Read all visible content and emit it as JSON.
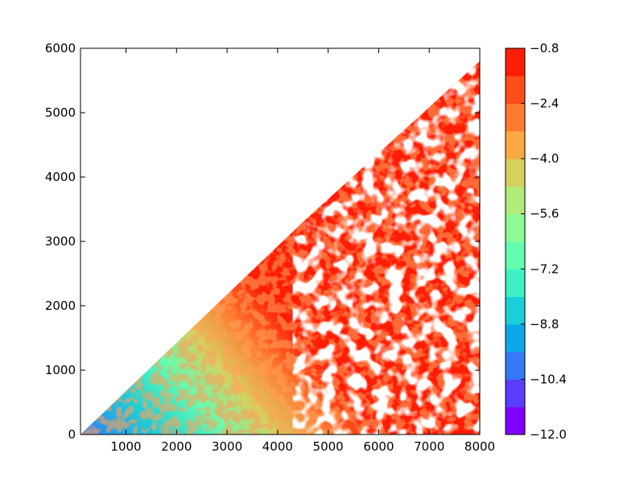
{
  "chart_data": {
    "type": "heatmap",
    "title": "",
    "xlabel": "",
    "ylabel": "",
    "xlim": [
      100,
      8000
    ],
    "ylim": [
      0,
      6000
    ],
    "x_ticks": [
      1000,
      2000,
      3000,
      4000,
      5000,
      6000,
      7000,
      8000
    ],
    "x_tick_labels": [
      "1000",
      "2000",
      "3000",
      "4000",
      "5000",
      "6000",
      "7000",
      "8000"
    ],
    "y_ticks": [
      0,
      1000,
      2000,
      3000,
      4000,
      5000,
      6000
    ],
    "y_tick_labels": [
      "0",
      "1000",
      "2000",
      "3000",
      "4000",
      "5000",
      "6000"
    ],
    "grid": false,
    "colormap": "rainbow",
    "colorbar": {
      "range": [
        -12.0,
        -0.8
      ],
      "levels": [
        -12.0,
        -11.2,
        -10.4,
        -9.6,
        -8.8,
        -8.0,
        -7.2,
        -6.4,
        -5.6,
        -4.8,
        -4.0,
        -3.2,
        -2.4,
        -1.6,
        -0.8
      ],
      "tick_values": [
        -12.0,
        -10.4,
        -8.8,
        -7.2,
        -5.6,
        -4.0,
        -2.4,
        -0.8
      ],
      "tick_labels": [
        "−12.0",
        "−10.4",
        "−8.8",
        "−7.2",
        "−5.6",
        "−4.0",
        "−2.4",
        "−0.8"
      ],
      "band_colors": [
        "#7f00ff",
        "#5a3dfd",
        "#3679f5",
        "#0ea8e9",
        "#1acfd9",
        "#3ff0c5",
        "#63fdaf",
        "#8bfb96",
        "#b1ec7b",
        "#d6d05f",
        "#fca843",
        "#ff7b2f",
        "#ff4e1a",
        "#ff1d05"
      ]
    },
    "data_region": {
      "description_boundary": "values present only where y < 0.73 * x (triangular region below diagonal)",
      "boundary_points": [
        [
          100,
          0
        ],
        [
          4500,
          3300
        ],
        [
          8000,
          5800
        ]
      ]
    }
  }
}
